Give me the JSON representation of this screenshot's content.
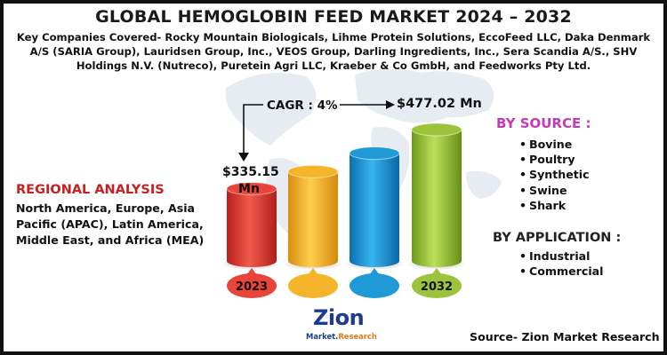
{
  "title": "GLOBAL HEMOGLOBIN FEED MARKET 2024 – 2032",
  "companies_text": "Key Companies Covered- Rocky Mountain Biologicals, Lihme Protein Solutions, EccoFeed LLC, Daka Denmark A/S (SARIA Group), Lauridsen Group, Inc., VEOS Group, Darling Ingredients, Inc., Sera Scandia A/S., SHV Holdings N.V. (Nutreco), Puretein Agri LLC, Kraeber & Co GmbH, and Feedworks Pty Ltd.",
  "cagr_label": "CAGR : 4%",
  "regional": {
    "title": "REGIONAL ANALYSIS",
    "text": "North America, Europe, Asia Pacific (APAC), Latin America, Middle East, and Africa (MEA)"
  },
  "by_source": {
    "title": "BY SOURCE :",
    "items": [
      "Bovine",
      "Poultry",
      "Synthetic",
      "Swine",
      "Shark"
    ]
  },
  "by_application": {
    "title": "BY APPLICATION :",
    "items": [
      "Industrial",
      "Commercial"
    ]
  },
  "source_note": "Source- Zion Market Research",
  "logo": {
    "name": "Zion",
    "subtitle_a": "Market.",
    "subtitle_b": "Research"
  },
  "colors": {
    "regional_title": "#c62020",
    "source_title": "#c23bb6",
    "bars": [
      "#e8443a",
      "#f5b52b",
      "#1f9ad6",
      "#9cc43a"
    ]
  },
  "chart_data": {
    "type": "bar",
    "categories": [
      "2023",
      "",
      "",
      "2032"
    ],
    "series": [
      {
        "values": [
          null,
          null,
          null,
          null
        ]
      }
    ],
    "annotations": {
      "start_value": "$335.15 Mn",
      "end_value": "$477.02 Mn"
    },
    "relative_heights": [
      0.55,
      0.68,
      0.82,
      1.0
    ]
  }
}
